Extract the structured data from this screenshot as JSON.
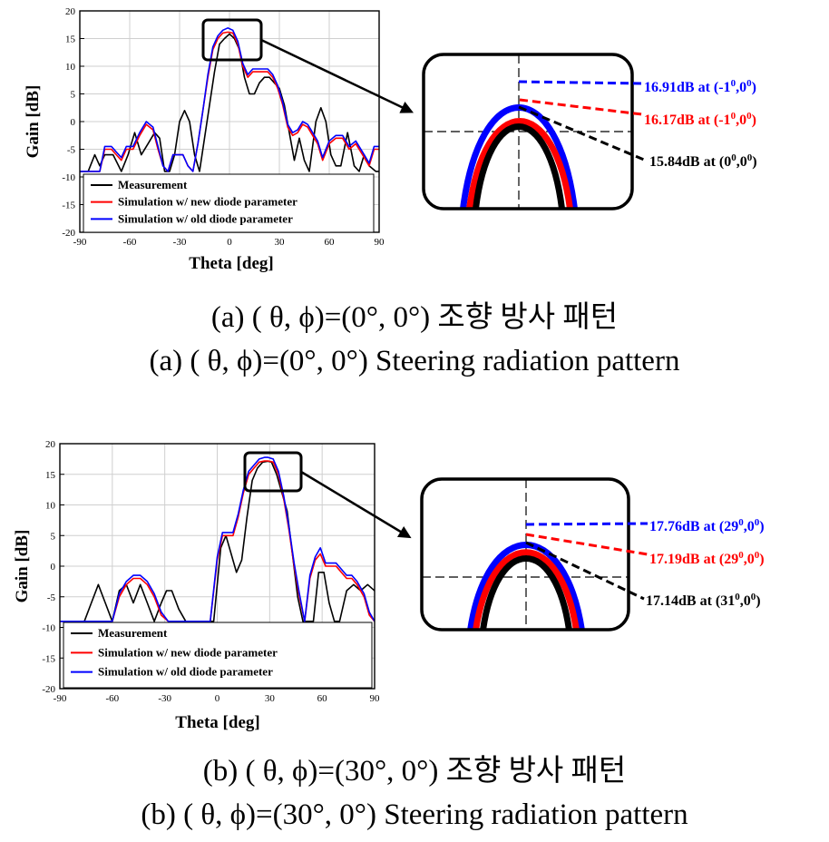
{
  "chart_data": [
    {
      "type": "line",
      "caption_ko": "(a) ( θ, ϕ)=(0°, 0°) 조향 방사 패턴",
      "caption_en": "(a) ( θ, ϕ)=(0°, 0°) Steering radiation pattern",
      "xlabel": "Theta [deg]",
      "ylabel": "Gain [dB]",
      "xlim": [
        -90,
        90
      ],
      "ylim": [
        -20,
        20
      ],
      "xticks": [
        "-90",
        "-60",
        "-30",
        "0",
        "30",
        "60",
        "90"
      ],
      "yticks": [
        "20",
        "15",
        "10",
        "5",
        "0",
        "-5",
        "-10",
        "-15",
        "-20"
      ],
      "legend_position": "lower-left",
      "series": [
        {
          "name": "Measurement",
          "color": "#000000",
          "x": [
            -90,
            -85,
            -81,
            -78,
            -75,
            -70,
            -65,
            -61,
            -57,
            -53,
            -49,
            -45,
            -42,
            -39,
            -36,
            -33,
            -30,
            -27,
            -24,
            -21,
            -18,
            -15,
            -12,
            -9,
            -6,
            -3,
            0,
            3,
            6,
            9,
            12,
            15,
            18,
            21,
            24,
            27,
            30,
            33,
            36,
            39,
            42,
            45,
            48,
            52,
            55,
            58,
            61,
            64,
            67,
            71,
            75,
            78,
            81,
            84,
            88,
            90
          ],
          "y": [
            -9,
            -9,
            -6,
            -8,
            -6,
            -6,
            -9,
            -6,
            -2,
            -6,
            -4,
            -2,
            -3,
            -9,
            -9,
            -6,
            0,
            2,
            0,
            -6,
            -9,
            -3,
            3,
            9,
            14,
            15,
            15.84,
            15,
            13,
            8,
            5,
            5,
            7,
            8,
            8,
            7,
            6,
            3,
            -2,
            -7,
            -3,
            -7,
            -9,
            0,
            2.5,
            0,
            -6,
            -8,
            -8,
            -2,
            -8,
            -9,
            -6,
            -8,
            -9,
            -9
          ]
        },
        {
          "name": "Simulation w/ new diode parameter",
          "color": "#ff0000",
          "x": [
            -90,
            -86,
            -82,
            -78,
            -75,
            -71,
            -68,
            -65,
            -62,
            -58,
            -54,
            -50,
            -46,
            -43,
            -40,
            -37,
            -34,
            -31,
            -28,
            -25,
            -22,
            -19,
            -16,
            -13,
            -10,
            -7,
            -4,
            -1,
            2,
            5,
            8,
            11,
            14,
            17,
            20,
            23,
            26,
            29,
            32,
            35,
            38,
            41,
            44,
            47,
            50,
            53,
            56,
            60,
            64,
            68,
            72,
            76,
            80,
            84,
            87,
            90
          ],
          "y": [
            -9,
            -9,
            -9,
            -9,
            -5,
            -5,
            -6,
            -7,
            -5,
            -5,
            -2.5,
            -0.5,
            -1.5,
            -5,
            -8,
            -9,
            -6,
            -6,
            -6,
            -8,
            -9,
            -4,
            2,
            8,
            13,
            15,
            16,
            16.17,
            16,
            14,
            10,
            8,
            9,
            9,
            9,
            9,
            8,
            6,
            3,
            -1,
            -2.5,
            -2,
            -0.5,
            -1,
            -2.5,
            -4,
            -7,
            -4,
            -3,
            -3,
            -5,
            -4,
            -6,
            -8,
            -5,
            -5
          ]
        },
        {
          "name": "Simulation w/ old diode parameter",
          "color": "#0000ff",
          "x": [
            -90,
            -86,
            -82,
            -78,
            -75,
            -71,
            -68,
            -65,
            -62,
            -58,
            -54,
            -50,
            -46,
            -43,
            -40,
            -37,
            -34,
            -31,
            -28,
            -25,
            -22,
            -19,
            -16,
            -13,
            -10,
            -7,
            -4,
            -1,
            2,
            5,
            8,
            11,
            14,
            17,
            20,
            23,
            26,
            29,
            32,
            35,
            38,
            41,
            44,
            47,
            50,
            53,
            56,
            60,
            64,
            68,
            72,
            76,
            80,
            84,
            87,
            90
          ],
          "y": [
            -9,
            -9,
            -9,
            -9,
            -4.5,
            -4.5,
            -5.5,
            -6.5,
            -4.5,
            -4.5,
            -2,
            0,
            -1,
            -4.5,
            -8,
            -9,
            -6,
            -6,
            -6,
            -8,
            -9,
            -4,
            2,
            8.5,
            13.5,
            15.5,
            16.5,
            16.91,
            16.5,
            14.5,
            10.5,
            8.5,
            9.5,
            9.5,
            9.5,
            9.5,
            8.5,
            6.5,
            3.5,
            -0.5,
            -2,
            -1.5,
            0,
            -0.5,
            -2,
            -3.5,
            -6.5,
            -3.5,
            -2.5,
            -2.5,
            -4.5,
            -3.5,
            -5.5,
            -7.5,
            -4.5,
            -4.5
          ]
        }
      ],
      "inset_labels": [
        {
          "text": "16.91dB at (-1",
          "sup1": "0",
          "mid": ",0",
          "sup2": "0",
          "end": ")",
          "color": "#0000ff"
        },
        {
          "text": "16.17dB at (-1",
          "sup1": "0",
          "mid": ",0",
          "sup2": "0",
          "end": ")",
          "color": "#ff0000"
        },
        {
          "text": "15.84dB at (0",
          "sup1": "0",
          "mid": ",0",
          "sup2": "0",
          "end": ")",
          "color": "#000000"
        }
      ]
    },
    {
      "type": "line",
      "caption_ko": "(b) ( θ, ϕ)=(30°, 0°) 조향 방사 패턴",
      "caption_en": "(b) ( θ, ϕ)=(30°, 0°) Steering radiation pattern",
      "xlabel": "Theta [deg]",
      "ylabel": "Gain [dB]",
      "xlim": [
        -90,
        90
      ],
      "ylim": [
        -20,
        20
      ],
      "xticks": [
        "-90",
        "-60",
        "-30",
        "0",
        "30",
        "60",
        "90"
      ],
      "yticks": [
        "20",
        "15",
        "10",
        "5",
        "0",
        "-5",
        "-10",
        "-15",
        "-20"
      ],
      "legend_position": "lower-left",
      "series": [
        {
          "name": "Measurement",
          "color": "#000000",
          "x": [
            -90,
            -85,
            -80,
            -76,
            -72,
            -68,
            -64,
            -60,
            -56,
            -52,
            -48,
            -44,
            -40,
            -36,
            -32,
            -29,
            -26,
            -22,
            -18,
            -14,
            -10,
            -6,
            -2,
            2,
            5,
            8,
            11,
            14,
            17,
            20,
            23,
            26,
            29,
            31,
            34,
            37,
            40,
            43,
            46,
            49,
            52,
            55,
            58,
            61,
            64,
            67,
            70,
            74,
            78,
            82,
            86,
            90
          ],
          "y": [
            -9,
            -9,
            -9,
            -9,
            -6,
            -3,
            -6,
            -9,
            -4,
            -3,
            -6,
            -3,
            -6,
            -9,
            -6,
            -4,
            -4,
            -7,
            -9,
            -9,
            -9,
            -9,
            -9,
            3,
            5,
            2,
            -1,
            1,
            8,
            14,
            16,
            17,
            17.14,
            17,
            15,
            12,
            9,
            2,
            -5,
            -9,
            -9,
            -9,
            -1,
            -1,
            -6,
            -9,
            -9,
            -4,
            -3,
            -4,
            -3,
            -4
          ]
        },
        {
          "name": "Simulation w/ new diode parameter",
          "color": "#ff0000",
          "x": [
            -90,
            -85,
            -80,
            -76,
            -72,
            -68,
            -64,
            -60,
            -56,
            -52,
            -48,
            -44,
            -40,
            -36,
            -32,
            -28,
            -24,
            -20,
            -16,
            -12,
            -8,
            -4,
            0,
            3,
            6,
            9,
            12,
            15,
            18,
            21,
            24,
            27,
            29,
            32,
            35,
            38,
            41,
            44,
            47,
            50,
            53,
            56,
            59,
            62,
            65,
            68,
            71,
            74,
            77,
            80,
            84,
            87,
            90
          ],
          "y": [
            -9,
            -9,
            -9,
            -9,
            -9,
            -9,
            -9,
            -9,
            -5,
            -3,
            -2,
            -2,
            -3,
            -5,
            -8,
            -9,
            -9,
            -9,
            -9,
            -9,
            -9,
            -9,
            1,
            5,
            5,
            5,
            8,
            12,
            15,
            16,
            17,
            17.19,
            17.19,
            17,
            15,
            11,
            6,
            0,
            -5,
            -9,
            -2,
            1,
            2,
            0,
            0,
            0,
            -1,
            -2,
            -2,
            -3,
            -5,
            -8,
            -9
          ]
        },
        {
          "name": "Simulation w/ old diode parameter",
          "color": "#0000ff",
          "x": [
            -90,
            -85,
            -80,
            -76,
            -72,
            -68,
            -64,
            -60,
            -56,
            -52,
            -48,
            -44,
            -40,
            -36,
            -32,
            -28,
            -24,
            -20,
            -16,
            -12,
            -8,
            -4,
            0,
            3,
            6,
            9,
            12,
            15,
            18,
            21,
            24,
            27,
            29,
            32,
            35,
            38,
            41,
            44,
            47,
            50,
            53,
            56,
            59,
            62,
            65,
            68,
            71,
            74,
            77,
            80,
            84,
            87,
            90
          ],
          "y": [
            -9,
            -9,
            -9,
            -9,
            -9,
            -9,
            -9,
            -9,
            -4.5,
            -2.5,
            -1.5,
            -1.5,
            -2.5,
            -4.5,
            -7.5,
            -9,
            -9,
            -9,
            -9,
            -9,
            -9,
            -9,
            1.5,
            5.5,
            5.5,
            5.5,
            8.5,
            12.5,
            15.5,
            16.5,
            17.5,
            17.76,
            17.76,
            17.5,
            15.5,
            11.5,
            6.5,
            0.5,
            -4.5,
            -9,
            -1.5,
            1.5,
            3,
            0.5,
            0.5,
            0.5,
            -0.5,
            -1.5,
            -1.5,
            -2.5,
            -4.5,
            -7.5,
            -9
          ]
        }
      ],
      "inset_labels": [
        {
          "text": "17.76dB at (29",
          "sup1": "0",
          "mid": ",0",
          "sup2": "0",
          "end": ")",
          "color": "#0000ff"
        },
        {
          "text": "17.19dB at (29",
          "sup1": "0",
          "mid": ",0",
          "sup2": "0",
          "end": ")",
          "color": "#ff0000"
        },
        {
          "text": "17.14dB at (31",
          "sup1": "0",
          "mid": ",0",
          "sup2": "0",
          "end": ")",
          "color": "#000000"
        }
      ]
    }
  ]
}
